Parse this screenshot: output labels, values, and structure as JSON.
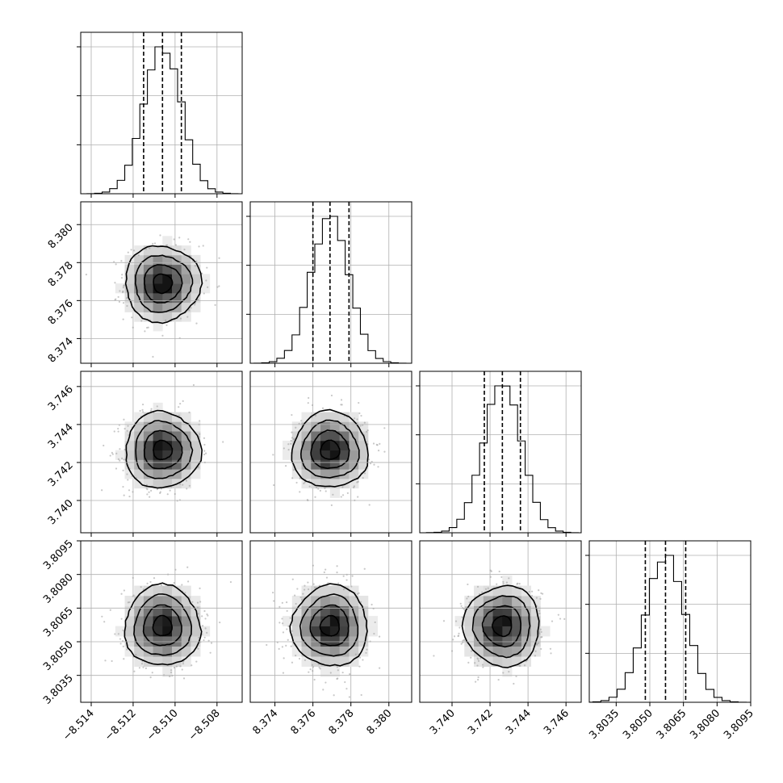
{
  "chart_data": {
    "type": "corner",
    "grid": true,
    "parameters": [
      {
        "mean": -8.5106,
        "sd": 0.0009,
        "range": [
          -8.5145,
          -8.5068
        ],
        "ticks": [
          -8.514,
          -8.512,
          -8.51,
          -8.508
        ],
        "tick_labels": [
          "−8.514",
          "−8.512",
          "−8.510",
          "−8.508"
        ],
        "quantiles": [
          -8.5115,
          -8.5106,
          -8.5097
        ]
      },
      {
        "mean": 8.3769,
        "sd": 0.001,
        "range": [
          8.3727,
          8.3812
        ],
        "ticks": [
          8.374,
          8.376,
          8.378,
          8.38
        ],
        "tick_labels": [
          "8.374",
          "8.376",
          "8.378",
          "8.380"
        ],
        "quantiles": [
          8.376,
          8.3769,
          8.3779
        ]
      },
      {
        "mean": 3.74265,
        "sd": 0.001,
        "range": [
          3.7383,
          3.7468
        ],
        "ticks": [
          3.74,
          3.742,
          3.744,
          3.746
        ],
        "tick_labels": [
          "3.740",
          "3.742",
          "3.744",
          "3.746"
        ],
        "quantiles": [
          3.7417,
          3.74265,
          3.7436
        ]
      },
      {
        "mean": 3.8057,
        "sd": 0.0009,
        "range": [
          3.8023,
          3.8095
        ],
        "ticks": [
          3.8035,
          3.805,
          3.8065,
          3.808,
          3.8095
        ],
        "tick_labels": [
          "3.8035",
          "3.8050",
          "3.8065",
          "3.8080",
          "3.8095"
        ],
        "quantiles": [
          3.8048,
          3.8057,
          3.8066
        ]
      }
    ],
    "contour_levels_sigma": [
      0.5,
      1.0,
      1.5,
      2.0
    ]
  }
}
